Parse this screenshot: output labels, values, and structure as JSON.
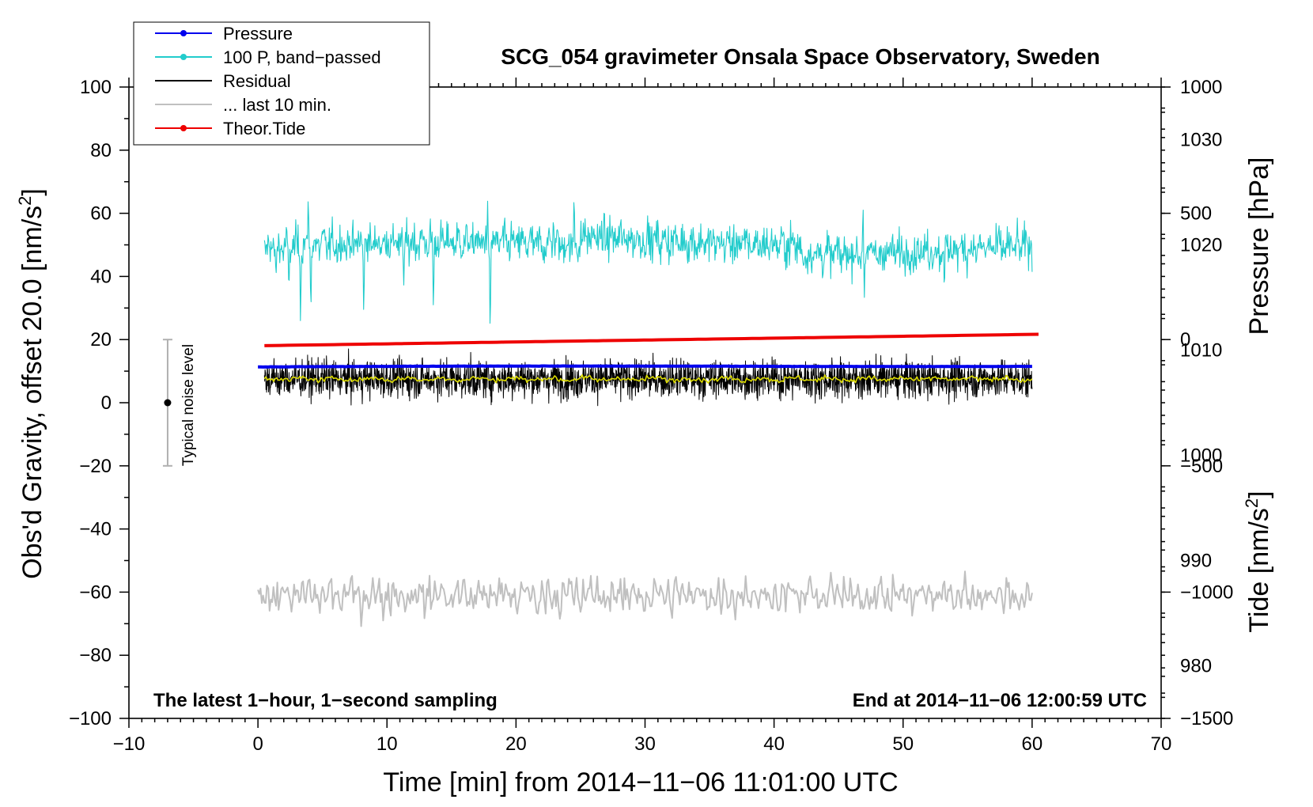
{
  "chart_data": {
    "type": "line",
    "title": "SCG_054 gravimeter Onsala Space Observatory, Sweden",
    "xlabel": "Time [min] from 2014−11−06 11:01:00 UTC",
    "ylabel_left": "Obs'd Gravity, offset 20.0 [nm/s²]",
    "ylabel_right_top": "Pressure [hPa]",
    "ylabel_right_bottom": "Tide [nm/s²]",
    "xlim": [
      -10,
      70
    ],
    "ylim": [
      -100,
      100
    ],
    "pressure_axis_range": [
      975,
      1035
    ],
    "tide_axis_range": [
      -1500,
      1000
    ],
    "x_ticks": [
      {
        "v": -10,
        "label": "−10"
      },
      {
        "v": 0,
        "label": "0"
      },
      {
        "v": 10,
        "label": "10"
      },
      {
        "v": 20,
        "label": "20"
      },
      {
        "v": 30,
        "label": "30"
      },
      {
        "v": 40,
        "label": "40"
      },
      {
        "v": 50,
        "label": "50"
      },
      {
        "v": 60,
        "label": "60"
      },
      {
        "v": 70,
        "label": "70"
      }
    ],
    "y_ticks": [
      {
        "v": 100,
        "label": "100"
      },
      {
        "v": 80,
        "label": "80"
      },
      {
        "v": 60,
        "label": "60"
      },
      {
        "v": 40,
        "label": "40"
      },
      {
        "v": 20,
        "label": "20"
      },
      {
        "v": 0,
        "label": "0"
      },
      {
        "v": -20,
        "label": "−20"
      },
      {
        "v": -40,
        "label": "−40"
      },
      {
        "v": -60,
        "label": "−60"
      },
      {
        "v": -80,
        "label": "−80"
      },
      {
        "v": -100,
        "label": "−100"
      }
    ],
    "pressure_ticks": [
      {
        "v": 1030,
        "label": "1030"
      },
      {
        "v": 1020,
        "label": "1020"
      },
      {
        "v": 1010,
        "label": "1010"
      },
      {
        "v": 1000,
        "label": "1000"
      },
      {
        "v": 990,
        "label": "990"
      },
      {
        "v": 980,
        "label": "980"
      }
    ],
    "tide_ticks": [
      {
        "v": 1000,
        "label": "1000"
      },
      {
        "v": 500,
        "label": "500"
      },
      {
        "v": 0,
        "label": "0"
      },
      {
        "v": -500,
        "label": "−500"
      },
      {
        "v": -1000,
        "label": "−1000"
      },
      {
        "v": -1500,
        "label": "−1500"
      }
    ],
    "series": [
      {
        "name": "Pressure",
        "color": "#0000ee",
        "units": "hPa",
        "x_range": [
          0,
          60
        ],
        "level": 1008.4,
        "level_end": 1008.5,
        "noise": 0.15
      },
      {
        "name": "100 P, band−passed",
        "color": "#22cccc",
        "units": "nm/s²",
        "x_range": [
          0.5,
          60
        ],
        "center": 49,
        "noise": 4.5,
        "spikes": [
          [
            1.4,
            -10
          ],
          [
            2.4,
            -15
          ],
          [
            3.3,
            -26
          ],
          [
            3.9,
            18
          ],
          [
            4.1,
            -22
          ],
          [
            8.2,
            -23
          ],
          [
            11.3,
            -12
          ],
          [
            13.6,
            -21
          ],
          [
            18.0,
            -31
          ],
          [
            17.8,
            15
          ],
          [
            24.5,
            19
          ],
          [
            22.9,
            11
          ],
          [
            46.9,
            14
          ],
          [
            47.0,
            -16
          ],
          [
            53.2,
            -15
          ]
        ]
      },
      {
        "name": "Residual",
        "color": "#000000",
        "units": "nm/s²",
        "x_range": [
          0.5,
          60
        ],
        "center": 7.5,
        "noise": 4.2
      },
      {
        "name": "Residual smoothed",
        "color": "#dddd00",
        "units": "nm/s²",
        "x_range": [
          0.5,
          60
        ],
        "center": 7.5,
        "noise": 1.0
      },
      {
        "name": "... last 10 min.",
        "color": "#c0c0c0",
        "units": "nm/s²",
        "x_range": [
          0,
          60
        ],
        "center": -61,
        "noise": 4.0
      },
      {
        "name": "Theor.Tide",
        "color": "#ee0000",
        "units": "nm/s²",
        "x_range": [
          0.5,
          60.5
        ],
        "start": -24,
        "end": 21
      }
    ],
    "legend": {
      "placement": "top-left",
      "entries": [
        {
          "label": "Pressure",
          "color": "#0000ee",
          "marker": true
        },
        {
          "label": "100 P, band−passed",
          "color": "#22cccc",
          "marker": true
        },
        {
          "label": "Residual",
          "color": "#000000",
          "marker": false
        },
        {
          "label": "... last 10 min.",
          "color": "#c0c0c0",
          "marker": false
        },
        {
          "label": "Theor.Tide",
          "color": "#ee0000",
          "marker": true
        }
      ]
    },
    "noise_level": {
      "x": -7,
      "low": -20,
      "high": 20,
      "center": 0,
      "label": "Typical noise level"
    },
    "annotations": {
      "bottom_left": "The latest 1−hour, 1−second sampling",
      "bottom_right": "End at 2014−11−06 12:00:59 UTC"
    }
  }
}
